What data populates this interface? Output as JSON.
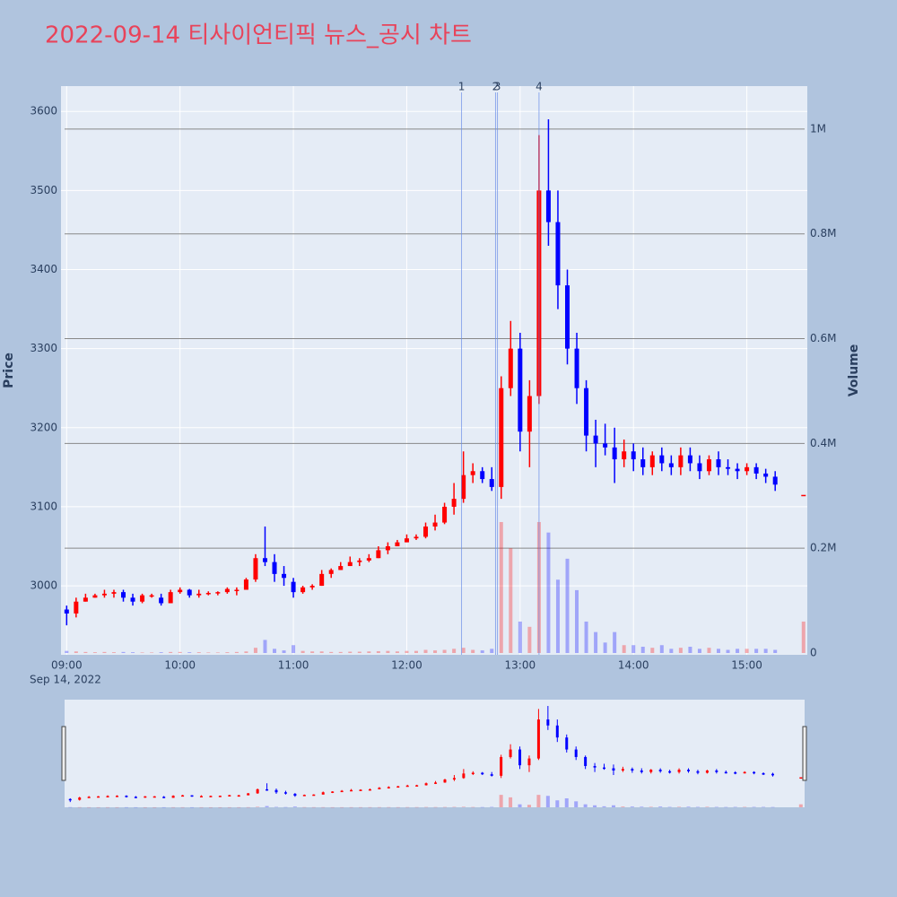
{
  "chart_data": {
    "type": "candlestick",
    "title": "2022-09-14 티사이언티픽 뉴스_공시 차트",
    "ylabel": "Price",
    "y2label": "Volume",
    "x_date_label": "Sep 14, 2022",
    "increasing_color": "#ff0000",
    "decreasing_color": "#0000ff",
    "grid": true,
    "xlim": [
      "08:57",
      "15:32"
    ],
    "xticks": [
      "09:00",
      "10:00",
      "11:00",
      "12:00",
      "13:00",
      "14:00",
      "15:00"
    ],
    "ylim": [
      2915,
      3632
    ],
    "yticks": [
      3000,
      3100,
      3200,
      3300,
      3400,
      3500,
      3600
    ],
    "y2lim": [
      0,
      1082000
    ],
    "y2ticks": [
      0,
      {
        "value": 200000,
        "label": "0.2M"
      },
      {
        "value": 400000,
        "label": "0.4M"
      },
      {
        "value": 600000,
        "label": "0.6M"
      },
      {
        "value": 800000,
        "label": "0.8M"
      },
      {
        "value": 1000000,
        "label": "1M"
      }
    ],
    "events": [
      {
        "label": "1",
        "x": "12:29"
      },
      {
        "label": "2",
        "x": "12:47"
      },
      {
        "label": "3",
        "x": "12:48"
      },
      {
        "label": "4",
        "x": "13:10"
      }
    ],
    "x": [
      "09:00",
      "09:05",
      "09:10",
      "09:15",
      "09:20",
      "09:25",
      "09:30",
      "09:35",
      "09:40",
      "09:45",
      "09:50",
      "09:55",
      "10:00",
      "10:05",
      "10:10",
      "10:15",
      "10:20",
      "10:25",
      "10:30",
      "10:35",
      "10:40",
      "10:45",
      "10:50",
      "10:55",
      "11:00",
      "11:05",
      "11:10",
      "11:15",
      "11:20",
      "11:25",
      "11:30",
      "11:35",
      "11:40",
      "11:45",
      "11:50",
      "11:55",
      "12:00",
      "12:05",
      "12:10",
      "12:15",
      "12:20",
      "12:25",
      "12:30",
      "12:35",
      "12:40",
      "12:45",
      "12:50",
      "12:55",
      "13:00",
      "13:05",
      "13:10",
      "13:15",
      "13:20",
      "13:25",
      "13:30",
      "13:35",
      "13:40",
      "13:45",
      "13:50",
      "13:55",
      "14:00",
      "14:05",
      "14:10",
      "14:15",
      "14:20",
      "14:25",
      "14:30",
      "14:35",
      "14:40",
      "14:45",
      "14:50",
      "14:55",
      "15:00",
      "15:05",
      "15:10",
      "15:15",
      "15:30"
    ],
    "open": [
      2970,
      2965,
      2980,
      2985,
      2988,
      2990,
      2992,
      2985,
      2980,
      2988,
      2985,
      2978,
      2992,
      2995,
      2988,
      2990,
      2991,
      2992,
      2995,
      2995,
      3008,
      3035,
      3030,
      3015,
      3005,
      2992,
      2998,
      3000,
      3015,
      3020,
      3025,
      3030,
      3032,
      3035,
      3045,
      3050,
      3055,
      3060,
      3062,
      3075,
      3080,
      3100,
      3110,
      3140,
      3145,
      3135,
      3125,
      3250,
      3300,
      3195,
      3240,
      3500,
      3460,
      3380,
      3300,
      3250,
      3190,
      3180,
      3175,
      3160,
      3170,
      3160,
      3150,
      3165,
      3155,
      3150,
      3165,
      3155,
      3145,
      3160,
      3150,
      3148,
      3145,
      3150,
      3142,
      3138,
      3115
    ],
    "high": [
      2975,
      2985,
      2990,
      2990,
      2995,
      2995,
      2995,
      2990,
      2990,
      2990,
      2990,
      2995,
      2998,
      2996,
      2995,
      2993,
      2993,
      2998,
      2998,
      3010,
      3040,
      3075,
      3040,
      3025,
      3010,
      3000,
      3002,
      3020,
      3022,
      3030,
      3037,
      3035,
      3040,
      3050,
      3055,
      3058,
      3065,
      3065,
      3080,
      3090,
      3105,
      3130,
      3170,
      3155,
      3150,
      3150,
      3265,
      3335,
      3320,
      3260,
      3570,
      3590,
      3500,
      3400,
      3320,
      3260,
      3210,
      3205,
      3200,
      3185,
      3180,
      3175,
      3170,
      3175,
      3165,
      3175,
      3175,
      3165,
      3165,
      3170,
      3160,
      3155,
      3155,
      3155,
      3148,
      3145,
      3115
    ],
    "low": [
      2950,
      2960,
      2980,
      2985,
      2985,
      2985,
      2980,
      2975,
      2978,
      2985,
      2975,
      2978,
      2990,
      2985,
      2985,
      2988,
      2988,
      2990,
      2988,
      2995,
      3005,
      3025,
      3005,
      3000,
      2985,
      2990,
      2995,
      3000,
      3010,
      3020,
      3025,
      3025,
      3030,
      3035,
      3040,
      3050,
      3055,
      3058,
      3060,
      3070,
      3078,
      3090,
      3105,
      3130,
      3130,
      3120,
      3110,
      3240,
      3170,
      3150,
      3230,
      3430,
      3350,
      3280,
      3230,
      3170,
      3150,
      3165,
      3130,
      3150,
      3145,
      3140,
      3140,
      3145,
      3140,
      3140,
      3145,
      3135,
      3140,
      3140,
      3140,
      3135,
      3140,
      3135,
      3130,
      3120,
      3115
    ],
    "close": [
      2965,
      2980,
      2985,
      2988,
      2990,
      2992,
      2985,
      2980,
      2988,
      2988,
      2978,
      2992,
      2995,
      2988,
      2990,
      2991,
      2992,
      2996,
      2995,
      3008,
      3035,
      3030,
      3015,
      3010,
      2992,
      2998,
      3000,
      3015,
      3020,
      3025,
      3030,
      3032,
      3035,
      3045,
      3050,
      3055,
      3060,
      3062,
      3075,
      3080,
      3100,
      3110,
      3140,
      3145,
      3135,
      3125,
      3250,
      3300,
      3195,
      3240,
      3500,
      3460,
      3380,
      3300,
      3250,
      3190,
      3180,
      3175,
      3160,
      3170,
      3160,
      3150,
      3165,
      3155,
      3150,
      3165,
      3155,
      3145,
      3160,
      3150,
      3148,
      3145,
      3150,
      3142,
      3138,
      3128,
      3115
    ],
    "volume": [
      4000,
      3000,
      2000,
      1500,
      2000,
      1500,
      2000,
      1500,
      1000,
      1000,
      1500,
      2000,
      2000,
      1500,
      1500,
      1000,
      1000,
      1500,
      2000,
      3000,
      10000,
      25000,
      8000,
      5000,
      15000,
      4000,
      3000,
      3000,
      2000,
      2000,
      2500,
      2500,
      3000,
      3500,
      4000,
      3000,
      4000,
      4000,
      6000,
      5000,
      6000,
      8000,
      10000,
      6000,
      5000,
      8000,
      250000,
      200000,
      60000,
      50000,
      250000,
      230000,
      140000,
      180000,
      120000,
      60000,
      40000,
      20000,
      40000,
      15000,
      15000,
      12000,
      10000,
      15000,
      8000,
      10000,
      12000,
      8000,
      10000,
      8000,
      6000,
      8000,
      8000,
      8000,
      8000,
      6000,
      60000
    ]
  }
}
